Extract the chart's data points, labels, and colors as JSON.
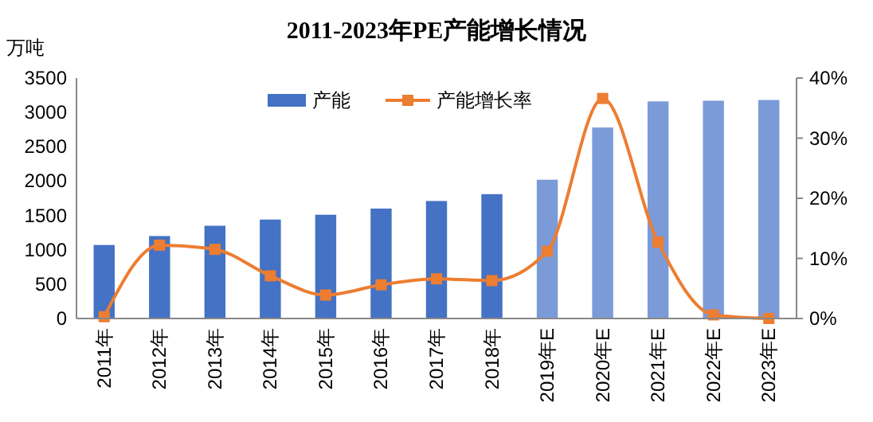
{
  "chart_data": {
    "type": "bar",
    "title": "2011-2023年PE产能增长情况",
    "ylabel": "万吨",
    "categories": [
      "2011年",
      "2012年",
      "2013年",
      "2014年",
      "2015年",
      "2016年",
      "2017年",
      "2018年",
      "2019年E",
      "2020年E",
      "2021年E",
      "2022年E",
      "2023年E"
    ],
    "series": [
      {
        "name": "产能",
        "color": "#4472c4",
        "colors": [
          "#4472c4",
          "#4472c4",
          "#4472c4",
          "#4472c4",
          "#4472c4",
          "#4472c4",
          "#4472c4",
          "#4472c4",
          "#7b9bd8",
          "#7b9bd8",
          "#7b9bd8",
          "#7b9bd8",
          "#7b9bd8"
        ],
        "values": [
          1070,
          1200,
          1350,
          1440,
          1510,
          1600,
          1710,
          1810,
          2020,
          2780,
          3160,
          3170,
          3180
        ]
      },
      {
        "name": "产能增长率",
        "type": "line",
        "axis": "y2",
        "color": "#ed7d31",
        "marker": "square",
        "values": [
          0.3,
          12.2,
          11.5,
          7.1,
          3.9,
          5.6,
          6.6,
          6.3,
          11.2,
          36.6,
          12.7,
          0.6,
          0
        ]
      }
    ],
    "ylim": [
      0,
      3500
    ],
    "yticks": [
      0,
      500,
      1000,
      1500,
      2000,
      2500,
      3000,
      3500
    ],
    "y2lim": [
      0,
      40
    ],
    "y2ticks": [
      {
        "value": 0,
        "label": "0%"
      },
      {
        "value": 10,
        "label": "10%"
      },
      {
        "value": 20,
        "label": "20%"
      },
      {
        "value": 30,
        "label": "30%"
      },
      {
        "value": 40,
        "label": "40%"
      }
    ],
    "legend": "top",
    "grid": false
  }
}
